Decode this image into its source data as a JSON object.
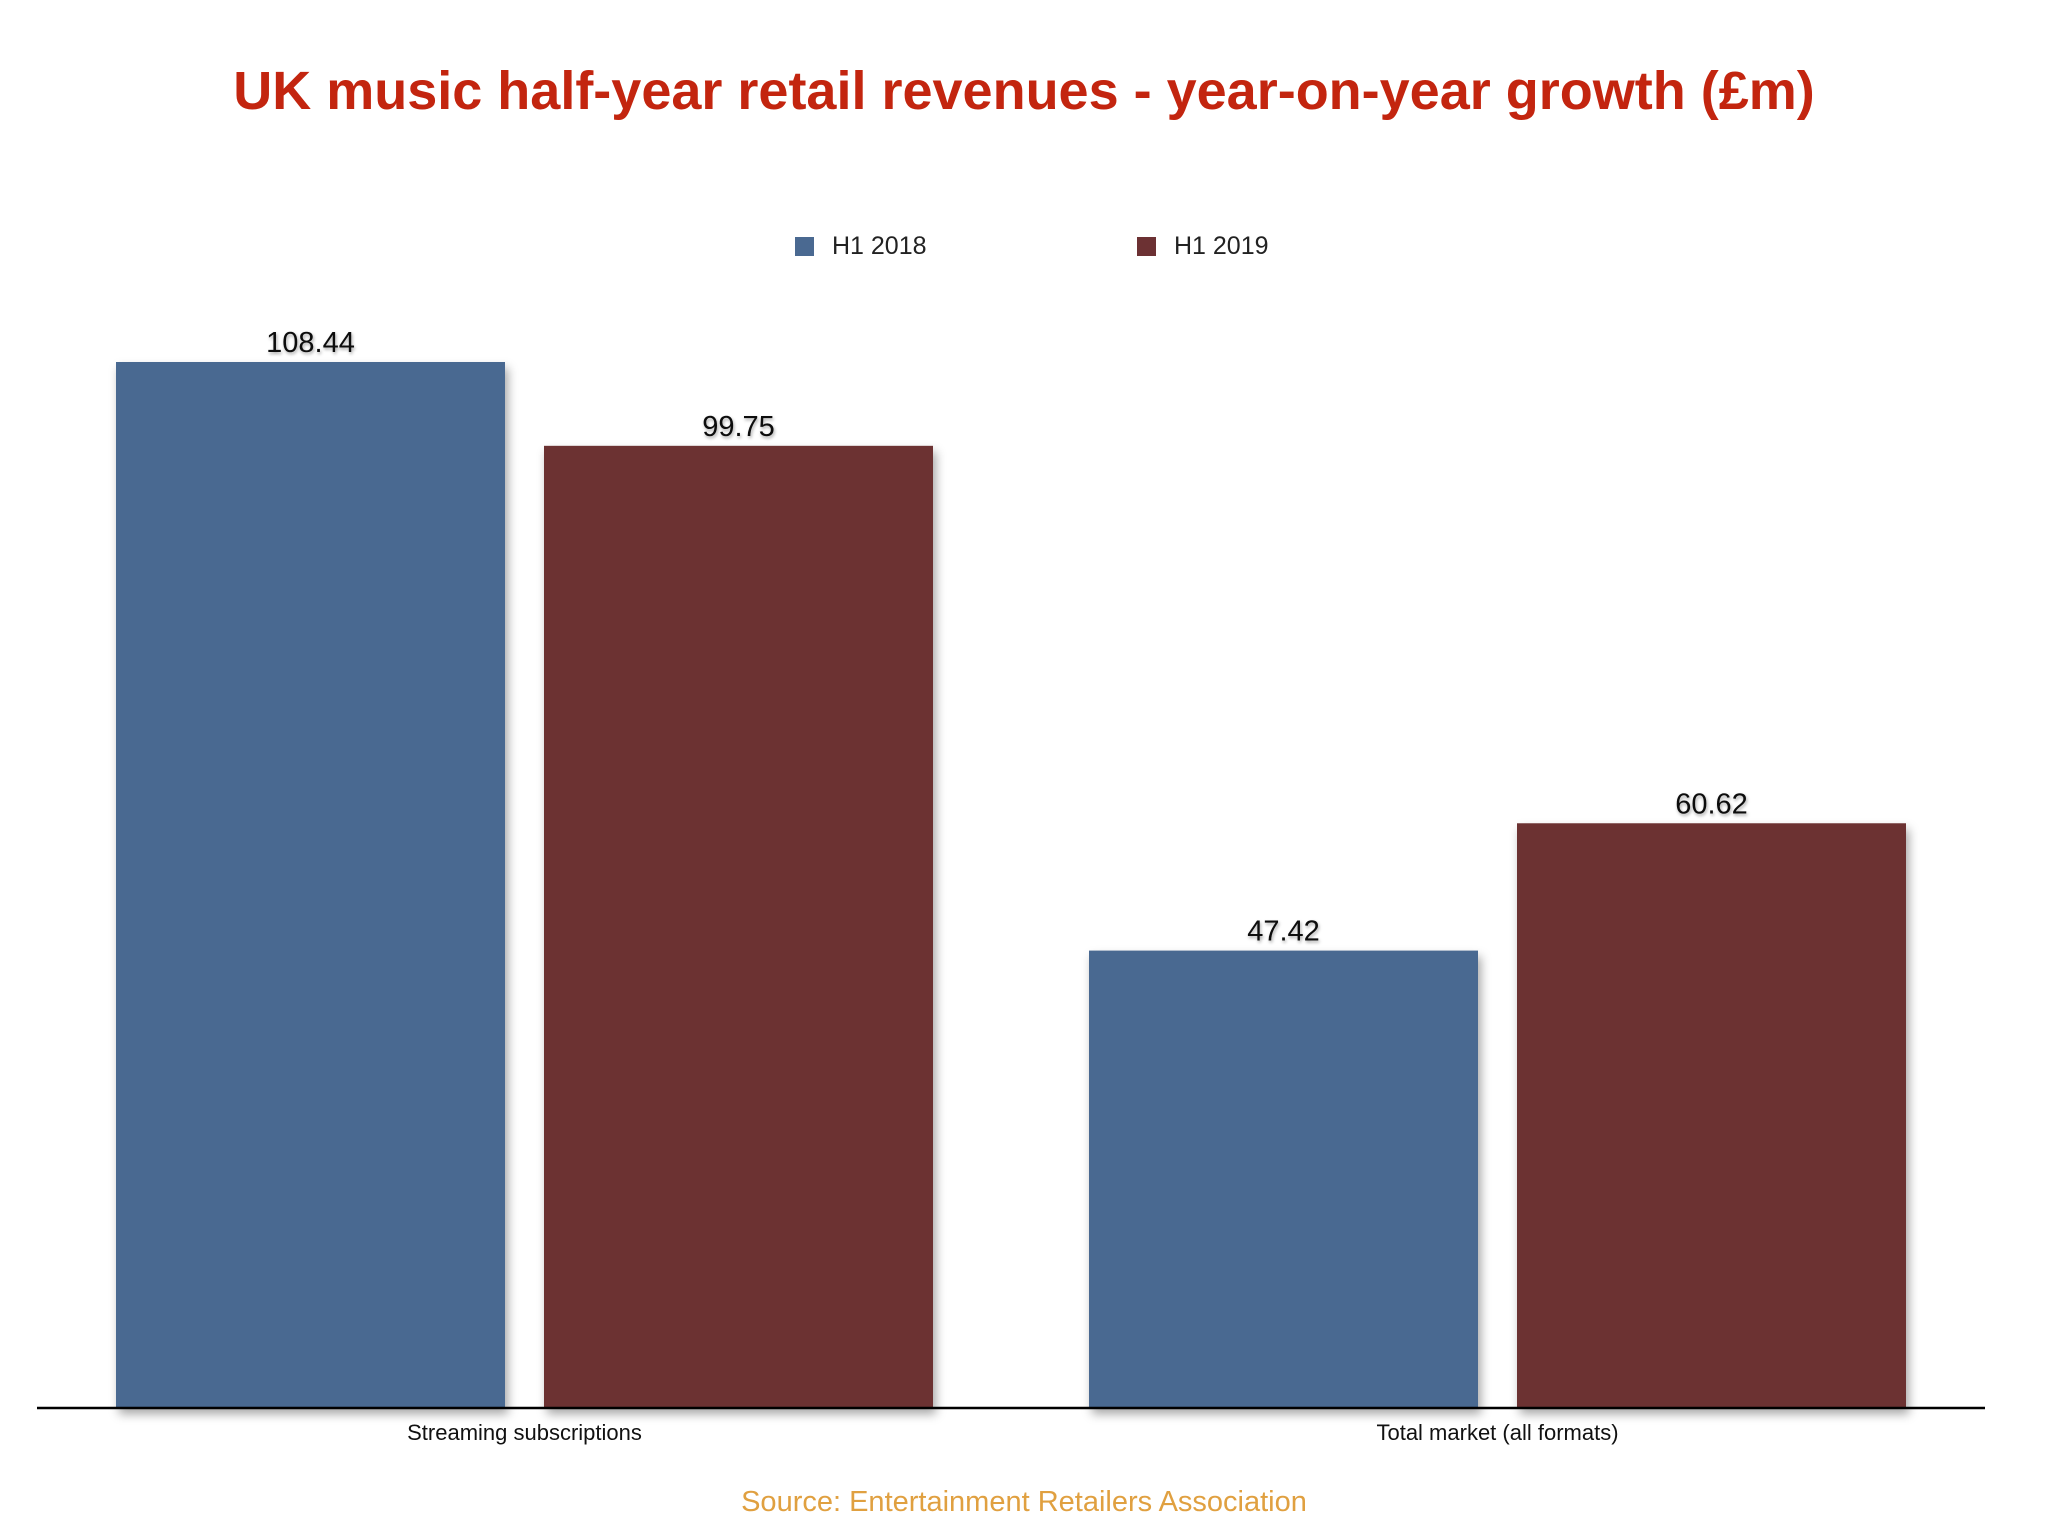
{
  "chart_data": {
    "type": "bar",
    "title": "UK music half-year retail revenues - year-on-year growth (£m)",
    "categories": [
      "Streaming subscriptions",
      "Total market (all formats)"
    ],
    "series": [
      {
        "name": "H1 2018",
        "color": "#4a6991",
        "values": [
          108.44,
          47.42
        ],
        "labels": [
          "108.44",
          "47.42"
        ]
      },
      {
        "name": "H1 2019",
        "color": "#6c3133",
        "values": [
          99.75,
          60.62
        ],
        "labels": [
          "99.75",
          "60.62"
        ]
      }
    ],
    "xlabel": "",
    "ylabel": "",
    "ylim": [
      0,
      108.44
    ],
    "grid": false,
    "legend": "top-center",
    "source": "Source: Entertainment Retailers Association"
  }
}
